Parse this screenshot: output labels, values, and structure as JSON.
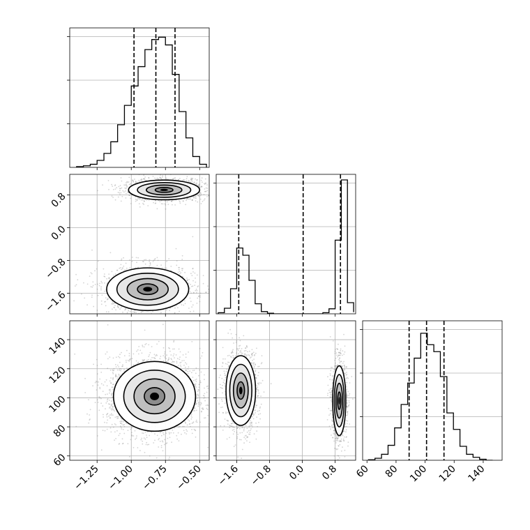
{
  "chart_data": {
    "type": "corner",
    "style": {
      "hist_color": "#000000",
      "scatter_color": "#808080",
      "density_color": "#000000",
      "quantile_line_style": "dashed",
      "grid": true
    },
    "parameters": [
      {
        "index": 0,
        "range": [
          -1.45,
          -0.43
        ],
        "ticks": [
          -1.25,
          -1.0,
          -0.75,
          -0.5
        ],
        "tick_labels": [
          "−1.25",
          "−1.00",
          "−0.75",
          "−0.50"
        ],
        "quantiles": [
          -0.98,
          -0.82,
          -0.68
        ]
      },
      {
        "index": 1,
        "range": [
          -2.1,
          1.3
        ],
        "ticks": [
          -1.6,
          -0.8,
          0.0,
          0.8
        ],
        "tick_labels": [
          "−1.6",
          "−0.8",
          "0.0",
          "0.8"
        ],
        "quantiles": [
          -1.55,
          0.02,
          0.93
        ]
      },
      {
        "index": 2,
        "range": [
          57,
          153
        ],
        "ticks": [
          60,
          80,
          100,
          120,
          140
        ],
        "tick_labels": [
          "60",
          "80",
          "100",
          "120",
          "140"
        ],
        "quantiles": [
          89,
          101,
          113
        ]
      }
    ],
    "histograms": [
      {
        "param": 0,
        "edges": [
          -1.4,
          -1.35,
          -1.3,
          -1.25,
          -1.2,
          -1.15,
          -1.1,
          -1.05,
          -1.0,
          -0.95,
          -0.9,
          -0.85,
          -0.8,
          -0.75,
          -0.7,
          -0.65,
          -0.6,
          -0.55,
          -0.5,
          -0.45
        ],
        "counts": [
          1,
          2,
          4,
          9,
          18,
          33,
          55,
          80,
          105,
          130,
          152,
          165,
          168,
          158,
          120,
          72,
          38,
          14,
          4
        ],
        "ymax": 180
      },
      {
        "param": 1,
        "edges": [
          -2.05,
          -1.9,
          -1.75,
          -1.6,
          -1.45,
          -1.3,
          -1.15,
          -1.0,
          -0.85,
          -0.7,
          -0.55,
          -0.4,
          -0.25,
          -0.1,
          0.05,
          0.2,
          0.35,
          0.5,
          0.65,
          0.8,
          0.95,
          1.1,
          1.25
        ],
        "counts": [
          2,
          10,
          45,
          118,
          105,
          60,
          18,
          4,
          1,
          0,
          0,
          0,
          0,
          0,
          0,
          0,
          0,
          2,
          9,
          132,
          240,
          20,
          3
        ],
        "ymax": 250
      },
      {
        "param": 2,
        "edges": [
          61,
          65.5,
          70,
          74.5,
          79,
          83.5,
          88,
          92.5,
          97,
          101.5,
          106,
          110.5,
          115,
          119.5,
          124,
          128.5,
          133,
          137.5,
          142,
          146.5
        ],
        "counts": [
          1,
          4,
          12,
          30,
          65,
          112,
          155,
          205,
          255,
          232,
          218,
          168,
          95,
          62,
          28,
          12,
          6,
          2,
          0
        ],
        "ymax": 280
      }
    ],
    "pairs": [
      {
        "x_param": 0,
        "y_param": 1,
        "clusters": [
          {
            "center": [
              -0.76,
              0.92
            ],
            "spread": [
              0.13,
              0.12
            ],
            "weight": 0.5
          },
          {
            "center": [
              -0.88,
              -1.5
            ],
            "spread": [
              0.15,
              0.26
            ],
            "weight": 0.5
          }
        ]
      },
      {
        "x_param": 0,
        "y_param": 2,
        "clusters": [
          {
            "center": [
              -0.83,
              101
            ],
            "spread": [
              0.15,
              12
            ],
            "weight": 1.0
          }
        ]
      },
      {
        "x_param": 1,
        "y_param": 2,
        "clusters": [
          {
            "center": [
              -1.5,
              105
            ],
            "spread": [
              0.18,
              12
            ],
            "weight": 0.5
          },
          {
            "center": [
              0.9,
              98
            ],
            "spread": [
              0.08,
              12
            ],
            "weight": 0.5
          }
        ]
      }
    ]
  }
}
